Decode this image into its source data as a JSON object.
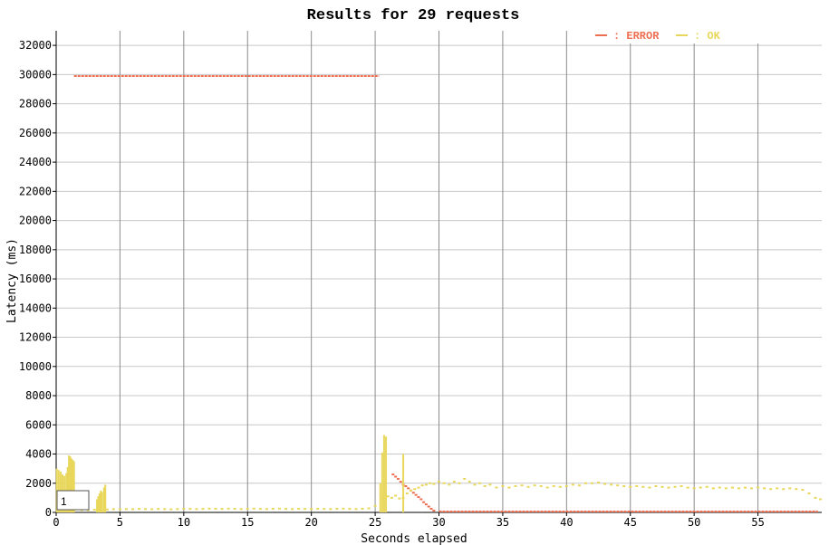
{
  "chart_data": {
    "type": "scatter",
    "title": "Results for 29 requests",
    "xlabel": "Seconds elapsed",
    "ylabel": "Latency (ms)",
    "xlim": [
      0,
      60
    ],
    "ylim": [
      0,
      33000
    ],
    "x_ticks": [
      0,
      5,
      10,
      15,
      20,
      25,
      30,
      35,
      40,
      45,
      50,
      55
    ],
    "y_ticks": [
      0,
      2000,
      4000,
      6000,
      8000,
      10000,
      12000,
      14000,
      16000,
      18000,
      20000,
      22000,
      24000,
      26000,
      28000,
      30000,
      32000
    ],
    "grid": true,
    "legend_position": "top-right",
    "series": [
      {
        "name": "ERROR",
        "color": "#ee6e52",
        "segments": [
          {
            "x0": 1.4,
            "x1": 25.3,
            "y": 29900
          },
          {
            "x0": 30.0,
            "x1": 59.7,
            "y": 60
          }
        ],
        "points": [
          [
            26.4,
            2600
          ],
          [
            26.6,
            2450
          ],
          [
            26.8,
            2300
          ],
          [
            27.0,
            2100
          ],
          [
            27.2,
            1900
          ],
          [
            27.4,
            1800
          ],
          [
            27.6,
            1650
          ],
          [
            27.8,
            1500
          ],
          [
            28.0,
            1350
          ],
          [
            28.2,
            1200
          ],
          [
            28.4,
            1050
          ],
          [
            28.6,
            900
          ],
          [
            28.8,
            700
          ],
          [
            29.0,
            550
          ],
          [
            29.2,
            400
          ],
          [
            29.4,
            250
          ],
          [
            29.6,
            120
          ]
        ]
      },
      {
        "name": "OK",
        "color": "#e8d75b",
        "bars": [
          [
            0.05,
            3000
          ],
          [
            0.2,
            2900
          ],
          [
            0.35,
            2800
          ],
          [
            0.5,
            2600
          ],
          [
            0.65,
            2500
          ],
          [
            0.8,
            2700
          ],
          [
            0.9,
            3100
          ],
          [
            1.0,
            3900
          ],
          [
            1.1,
            3850
          ],
          [
            1.2,
            3700
          ],
          [
            1.3,
            3600
          ],
          [
            1.4,
            3500
          ],
          [
            3.2,
            900
          ],
          [
            3.3,
            1100
          ],
          [
            3.4,
            1300
          ],
          [
            3.5,
            1500
          ],
          [
            3.6,
            1400
          ],
          [
            3.75,
            1700
          ],
          [
            3.85,
            1900
          ],
          [
            25.4,
            2000
          ],
          [
            25.55,
            4100
          ],
          [
            25.7,
            5300
          ],
          [
            25.85,
            5200
          ],
          [
            27.2,
            4000
          ]
        ],
        "points": [
          [
            0.5,
            180
          ],
          [
            1.0,
            160
          ],
          [
            1.5,
            200
          ],
          [
            2.0,
            160
          ],
          [
            2.5,
            150
          ],
          [
            3.0,
            180
          ],
          [
            4.0,
            200
          ],
          [
            4.5,
            220
          ],
          [
            5.0,
            210
          ],
          [
            5.5,
            230
          ],
          [
            6.0,
            220
          ],
          [
            6.5,
            240
          ],
          [
            7.0,
            230
          ],
          [
            7.5,
            220
          ],
          [
            8.0,
            240
          ],
          [
            8.5,
            230
          ],
          [
            9.0,
            210
          ],
          [
            9.5,
            230
          ],
          [
            10.0,
            250
          ],
          [
            10.5,
            240
          ],
          [
            11.0,
            230
          ],
          [
            11.5,
            240
          ],
          [
            12.0,
            260
          ],
          [
            12.5,
            250
          ],
          [
            13.0,
            240
          ],
          [
            13.5,
            260
          ],
          [
            14.0,
            250
          ],
          [
            14.5,
            230
          ],
          [
            15.0,
            250
          ],
          [
            15.5,
            260
          ],
          [
            16.0,
            240
          ],
          [
            16.5,
            230
          ],
          [
            17.0,
            250
          ],
          [
            17.5,
            260
          ],
          [
            18.0,
            240
          ],
          [
            18.5,
            230
          ],
          [
            19.0,
            250
          ],
          [
            19.5,
            240
          ],
          [
            20.0,
            230
          ],
          [
            20.5,
            250
          ],
          [
            21.0,
            240
          ],
          [
            21.5,
            230
          ],
          [
            22.0,
            250
          ],
          [
            22.5,
            260
          ],
          [
            23.0,
            240
          ],
          [
            23.5,
            230
          ],
          [
            24.0,
            250
          ],
          [
            24.5,
            280
          ],
          [
            25.0,
            450
          ],
          [
            25.6,
            900
          ],
          [
            26.0,
            1100
          ],
          [
            26.3,
            1000
          ],
          [
            26.6,
            1150
          ],
          [
            26.9,
            950
          ],
          [
            27.2,
            1000
          ],
          [
            27.5,
            1300
          ],
          [
            27.8,
            1500
          ],
          [
            28.1,
            1600
          ],
          [
            28.4,
            1700
          ],
          [
            28.7,
            1850
          ],
          [
            29.0,
            1900
          ],
          [
            29.3,
            2000
          ],
          [
            29.6,
            1950
          ],
          [
            30.0,
            2100
          ],
          [
            30.4,
            2000
          ],
          [
            30.8,
            1900
          ],
          [
            31.2,
            2100
          ],
          [
            31.6,
            2000
          ],
          [
            32.0,
            2300
          ],
          [
            32.4,
            2100
          ],
          [
            32.8,
            1900
          ],
          [
            33.2,
            2000
          ],
          [
            33.6,
            1800
          ],
          [
            34.0,
            1900
          ],
          [
            34.5,
            1700
          ],
          [
            35.0,
            1800
          ],
          [
            35.5,
            1700
          ],
          [
            36.0,
            1800
          ],
          [
            36.5,
            1850
          ],
          [
            37.0,
            1750
          ],
          [
            37.5,
            1850
          ],
          [
            38.0,
            1800
          ],
          [
            38.5,
            1700
          ],
          [
            39.0,
            1800
          ],
          [
            39.5,
            1750
          ],
          [
            40.0,
            1800
          ],
          [
            40.5,
            1900
          ],
          [
            41.0,
            1850
          ],
          [
            41.5,
            2000
          ],
          [
            42.0,
            2000
          ],
          [
            42.5,
            2050
          ],
          [
            43.0,
            1950
          ],
          [
            43.5,
            1900
          ],
          [
            44.0,
            1850
          ],
          [
            44.5,
            1800
          ],
          [
            45.0,
            1750
          ],
          [
            45.5,
            1800
          ],
          [
            46.0,
            1750
          ],
          [
            46.5,
            1700
          ],
          [
            47.0,
            1800
          ],
          [
            47.5,
            1750
          ],
          [
            48.0,
            1700
          ],
          [
            48.5,
            1750
          ],
          [
            49.0,
            1800
          ],
          [
            49.5,
            1700
          ],
          [
            50.0,
            1650
          ],
          [
            50.5,
            1700
          ],
          [
            51.0,
            1750
          ],
          [
            51.5,
            1650
          ],
          [
            52.0,
            1700
          ],
          [
            52.5,
            1650
          ],
          [
            53.0,
            1700
          ],
          [
            53.5,
            1650
          ],
          [
            54.0,
            1700
          ],
          [
            54.5,
            1650
          ],
          [
            55.0,
            1700
          ],
          [
            55.5,
            1650
          ],
          [
            56.0,
            1600
          ],
          [
            56.5,
            1650
          ],
          [
            57.0,
            1600
          ],
          [
            57.5,
            1650
          ],
          [
            58.0,
            1600
          ],
          [
            58.5,
            1550
          ],
          [
            59.0,
            1300
          ],
          [
            59.5,
            1000
          ],
          [
            59.9,
            900
          ]
        ]
      }
    ]
  },
  "ui": {
    "legend_error_label": ": ERROR",
    "legend_ok_label": ": OK",
    "threshold_input_value": "1"
  }
}
